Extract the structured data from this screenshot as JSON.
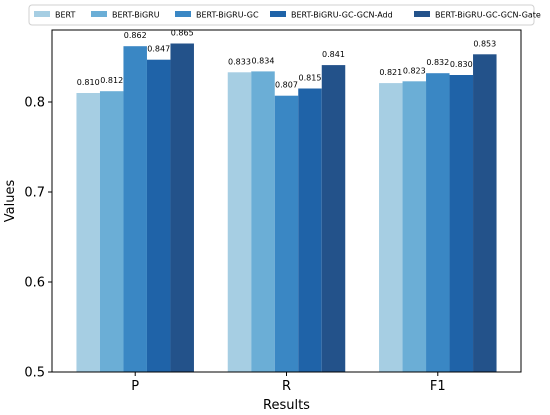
{
  "chart_data": {
    "type": "bar",
    "title": "",
    "xlabel": "Results",
    "ylabel": "Values",
    "categories": [
      "P",
      "R",
      "F1"
    ],
    "ylim": [
      0.5,
      0.88
    ],
    "yticks": [
      "0.5",
      "0.6",
      "0.7",
      "0.8"
    ],
    "ytick_values": [
      0.5,
      0.6,
      0.7,
      0.8
    ],
    "grid": false,
    "legend_position": "top",
    "series": [
      {
        "name": "BERT",
        "color": "#a6cee3",
        "values": [
          0.81,
          0.833,
          0.821
        ],
        "labels": [
          "0.810",
          "0.833",
          "0.821"
        ]
      },
      {
        "name": "BERT-BiGRU",
        "color": "#6baed6",
        "values": [
          0.812,
          0.834,
          0.823
        ],
        "labels": [
          "0.812",
          "0.834",
          "0.823"
        ]
      },
      {
        "name": "BERT-BiGRU-GC",
        "color": "#3a87c4",
        "values": [
          0.862,
          0.807,
          0.832
        ],
        "labels": [
          "0.862",
          "0.807",
          "0.832"
        ]
      },
      {
        "name": "BERT-BiGRU-GC-GCN-Add",
        "color": "#1f63a8",
        "values": [
          0.847,
          0.815,
          0.83
        ],
        "labels": [
          "0.847",
          "0.815",
          "0.830"
        ]
      },
      {
        "name": "BERT-BiGRU-GC-GCN-Gate",
        "color": "#23528a",
        "values": [
          0.865,
          0.841,
          0.853
        ],
        "labels": [
          "0.865",
          "0.841",
          "0.853"
        ]
      }
    ]
  }
}
